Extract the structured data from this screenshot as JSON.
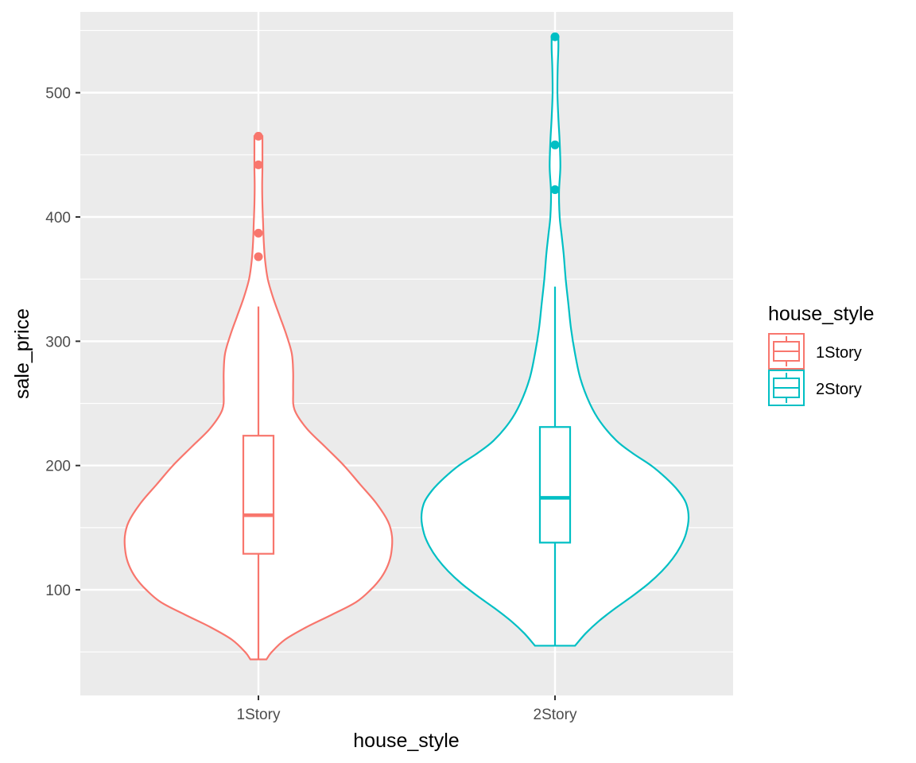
{
  "chart_data": {
    "type": "violin",
    "xlabel": "house_style",
    "ylabel": "sale_price",
    "categories": [
      "1Story",
      "2Story"
    ],
    "ylim": [
      15,
      565
    ],
    "y_ticks": [
      100,
      200,
      300,
      400,
      500
    ],
    "grid": true,
    "legend": {
      "title": "house_style",
      "position": "right",
      "entries": [
        "1Story",
        "2Story"
      ]
    },
    "series": [
      {
        "name": "1Story",
        "color": "#F8766D",
        "box": {
          "lower_whisker": 44,
          "q1": 129,
          "median": 160,
          "q3": 224,
          "upper_whisker": 328
        },
        "outliers": [
          368,
          387,
          442,
          465
        ],
        "density": [
          [
            44,
            0.06
          ],
          [
            50,
            0.1
          ],
          [
            60,
            0.2
          ],
          [
            70,
            0.36
          ],
          [
            80,
            0.55
          ],
          [
            90,
            0.73
          ],
          [
            100,
            0.84
          ],
          [
            110,
            0.92
          ],
          [
            120,
            0.97
          ],
          [
            130,
            0.995
          ],
          [
            143,
            1.0
          ],
          [
            155,
            0.97
          ],
          [
            170,
            0.88
          ],
          [
            185,
            0.76
          ],
          [
            200,
            0.64
          ],
          [
            215,
            0.5
          ],
          [
            230,
            0.36
          ],
          [
            245,
            0.27
          ],
          [
            260,
            0.26
          ],
          [
            275,
            0.26
          ],
          [
            290,
            0.25
          ],
          [
            305,
            0.21
          ],
          [
            320,
            0.16
          ],
          [
            335,
            0.11
          ],
          [
            350,
            0.07
          ],
          [
            365,
            0.05
          ],
          [
            380,
            0.04
          ],
          [
            395,
            0.035
          ],
          [
            410,
            0.03
          ],
          [
            425,
            0.028
          ],
          [
            440,
            0.03
          ],
          [
            455,
            0.03
          ],
          [
            465,
            0.03
          ]
        ]
      },
      {
        "name": "2Story",
        "color": "#00BFC4",
        "box": {
          "lower_whisker": 55,
          "q1": 138,
          "median": 174,
          "q3": 231,
          "upper_whisker": 344
        },
        "outliers": [
          422,
          458,
          545
        ],
        "density": [
          [
            55,
            0.15
          ],
          [
            65,
            0.23
          ],
          [
            75,
            0.33
          ],
          [
            85,
            0.45
          ],
          [
            95,
            0.58
          ],
          [
            105,
            0.7
          ],
          [
            115,
            0.8
          ],
          [
            125,
            0.88
          ],
          [
            135,
            0.94
          ],
          [
            145,
            0.98
          ],
          [
            158,
            1.0
          ],
          [
            170,
            0.98
          ],
          [
            180,
            0.92
          ],
          [
            190,
            0.83
          ],
          [
            200,
            0.72
          ],
          [
            210,
            0.58
          ],
          [
            220,
            0.46
          ],
          [
            235,
            0.34
          ],
          [
            250,
            0.26
          ],
          [
            270,
            0.19
          ],
          [
            290,
            0.15
          ],
          [
            310,
            0.12
          ],
          [
            330,
            0.1
          ],
          [
            350,
            0.08
          ],
          [
            370,
            0.065
          ],
          [
            385,
            0.05
          ],
          [
            400,
            0.035
          ],
          [
            420,
            0.03
          ],
          [
            440,
            0.04
          ],
          [
            460,
            0.035
          ],
          [
            480,
            0.025
          ],
          [
            500,
            0.018
          ],
          [
            520,
            0.02
          ],
          [
            535,
            0.025
          ],
          [
            545,
            0.025
          ]
        ]
      }
    ]
  }
}
